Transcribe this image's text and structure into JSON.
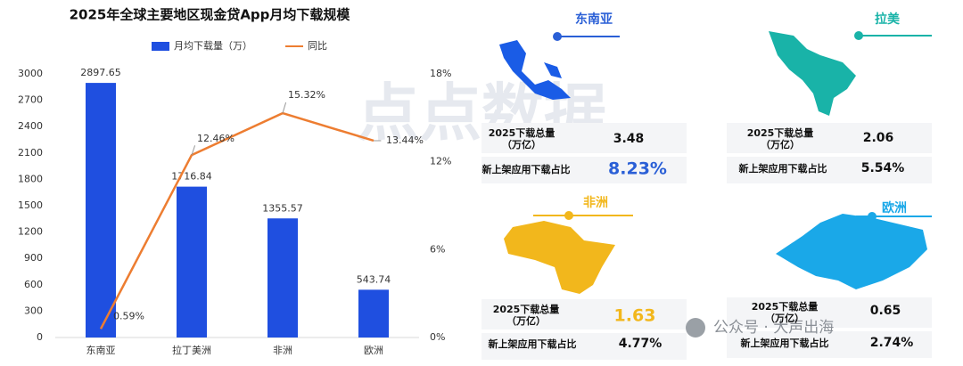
{
  "chart_data": {
    "type": "bar",
    "title": "2025年全球主要地区现金贷App月均下载规模",
    "categories": [
      "东南亚",
      "拉丁美洲",
      "非洲",
      "欧洲"
    ],
    "series": [
      {
        "name": "月均下载量（万）",
        "type": "bar",
        "color": "#1f4fe0",
        "values": [
          2897.65,
          1716.84,
          1355.57,
          543.74
        ]
      },
      {
        "name": "同比",
        "type": "line",
        "axis": "y2",
        "color": "#ed7d31",
        "values": [
          0.59,
          12.46,
          15.32,
          13.44
        ],
        "value_labels": [
          "0.59%",
          "12.46%",
          "15.32%",
          "13.44%"
        ]
      }
    ],
    "ylim": [
      0,
      3000
    ],
    "yticks": [
      0,
      300,
      600,
      900,
      1200,
      1500,
      1800,
      2100,
      2400,
      2700,
      3000
    ],
    "y2lim": [
      0,
      18
    ],
    "y2ticks": [
      {
        "value": 0,
        "label": "0%"
      },
      {
        "value": 6,
        "label": "6%"
      },
      {
        "value": 12,
        "label": "12%"
      },
      {
        "value": 18,
        "label": "18%"
      }
    ],
    "grid": false
  },
  "regions": [
    {
      "name": "东南亚",
      "total_label": [
        "2025下载总量",
        "（万亿）"
      ],
      "total": "3.48",
      "share_label": "新上架应用下载占比",
      "share": "8.23%"
    },
    {
      "name": "拉美",
      "total_label": [
        "2025下载总量",
        "（万亿）"
      ],
      "total": "2.06",
      "share_label": "新上架应用下载占比",
      "share": "5.54%"
    },
    {
      "name": "非洲",
      "total_label": [
        "2025下载总量",
        "（万亿）"
      ],
      "total": "1.63",
      "share_label": "新上架应用下载占比",
      "share": "4.77%"
    },
    {
      "name": "欧洲",
      "total_label": [
        "2025下载总量",
        "（万亿）"
      ],
      "total": "0.65",
      "share_label": "新上架应用下载占比",
      "share": "2.74%"
    }
  ],
  "watermark": "点点数据",
  "badge": "公众号 · 大声出海"
}
